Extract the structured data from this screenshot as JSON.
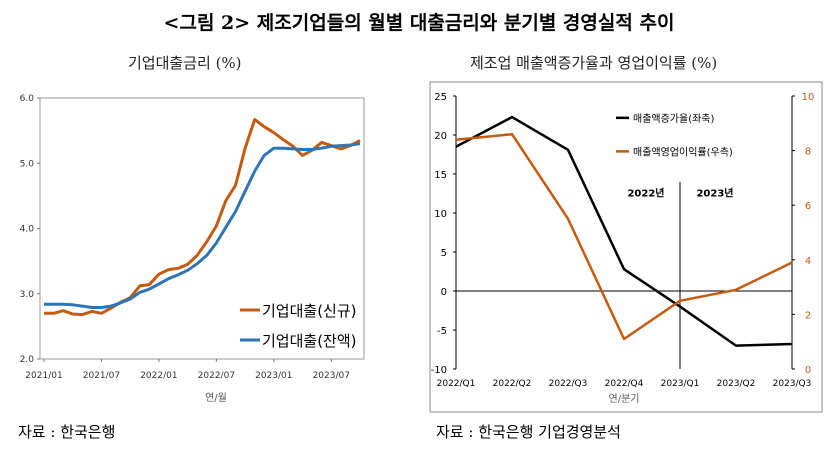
{
  "page": {
    "title": "<그림 2> 제조기업들의 월별 대출금리와 분기별 경영실적 추이",
    "left_panel_title": "기업대출금리 (%)",
    "right_panel_title": "제조업 매출액증가율과 영업이익률 (%)",
    "left_source": "자료 : 한국은행",
    "right_source": "자료 : 한국은행 기업경영분석"
  },
  "colors": {
    "orange": "#c55a11",
    "blue": "#2e75b6",
    "black": "#000000"
  },
  "chart_data": [
    {
      "type": "line",
      "title": "기업대출금리 (%)",
      "xlabel": "연/월",
      "ylabel": "",
      "ylim": [
        2.0,
        6.0
      ],
      "yticks": [
        "2.0",
        "3.0",
        "4.0",
        "5.0",
        "6.0"
      ],
      "xtick_labels": [
        "2021/01",
        "2021/07",
        "2022/01",
        "2022/07",
        "2023/01",
        "2023/07"
      ],
      "x": [
        "2021/01",
        "2021/02",
        "2021/03",
        "2021/04",
        "2021/05",
        "2021/06",
        "2021/07",
        "2021/08",
        "2021/09",
        "2021/10",
        "2021/11",
        "2021/12",
        "2022/01",
        "2022/02",
        "2022/03",
        "2022/04",
        "2022/05",
        "2022/06",
        "2022/07",
        "2022/08",
        "2022/09",
        "2022/10",
        "2022/11",
        "2022/12",
        "2023/01",
        "2023/02",
        "2023/03",
        "2023/04",
        "2023/05",
        "2023/06",
        "2023/07",
        "2023/08",
        "2023/09",
        "2023/10"
      ],
      "legend_position": "bottom-right",
      "series": [
        {
          "name": "기업대출(신규)",
          "color": "#c55a11",
          "values": [
            2.7,
            2.7,
            2.74,
            2.69,
            2.68,
            2.73,
            2.7,
            2.78,
            2.87,
            2.94,
            3.12,
            3.14,
            3.3,
            3.37,
            3.39,
            3.45,
            3.59,
            3.8,
            4.04,
            4.43,
            4.66,
            5.23,
            5.67,
            5.56,
            5.47,
            5.36,
            5.26,
            5.12,
            5.2,
            5.32,
            5.27,
            5.22,
            5.27,
            5.35
          ]
        },
        {
          "name": "기업대출(잔액)",
          "color": "#2e75b6",
          "values": [
            2.84,
            2.84,
            2.84,
            2.83,
            2.81,
            2.79,
            2.79,
            2.81,
            2.86,
            2.92,
            3.02,
            3.07,
            3.15,
            3.23,
            3.29,
            3.36,
            3.46,
            3.59,
            3.78,
            4.02,
            4.26,
            4.57,
            4.88,
            5.12,
            5.23,
            5.23,
            5.22,
            5.21,
            5.21,
            5.23,
            5.26,
            5.27,
            5.28,
            5.3
          ]
        }
      ]
    },
    {
      "type": "line",
      "title": "제조업 매출액증가율과 영업이익률 (%)",
      "xlabel": "연/분기",
      "categories": [
        "2022/Q1",
        "2022/Q2",
        "2022/Q3",
        "2022/Q4",
        "2023/Q1",
        "2023/Q2",
        "2023/Q3"
      ],
      "y_left": {
        "ylim": [
          -10,
          25
        ],
        "ticks": [
          "-10",
          "-5",
          "0",
          "5",
          "10",
          "15",
          "20",
          "25"
        ]
      },
      "y_right": {
        "ylim": [
          0,
          10
        ],
        "ticks": [
          "0",
          "2",
          "4",
          "6",
          "8",
          "10"
        ]
      },
      "annotations": [
        "2022년",
        "2023년"
      ],
      "legend_position": "top-center",
      "series": [
        {
          "name": "매출액증가율(좌축)",
          "axis": "left",
          "color": "#000000",
          "values": [
            18.5,
            22.3,
            18.1,
            2.8,
            -2.0,
            -7.0,
            -6.8
          ]
        },
        {
          "name": "매출액영업이익률(우측)",
          "axis": "right",
          "color": "#c55a11",
          "values": [
            8.4,
            8.6,
            5.5,
            1.1,
            2.5,
            2.9,
            3.9
          ]
        }
      ]
    }
  ]
}
